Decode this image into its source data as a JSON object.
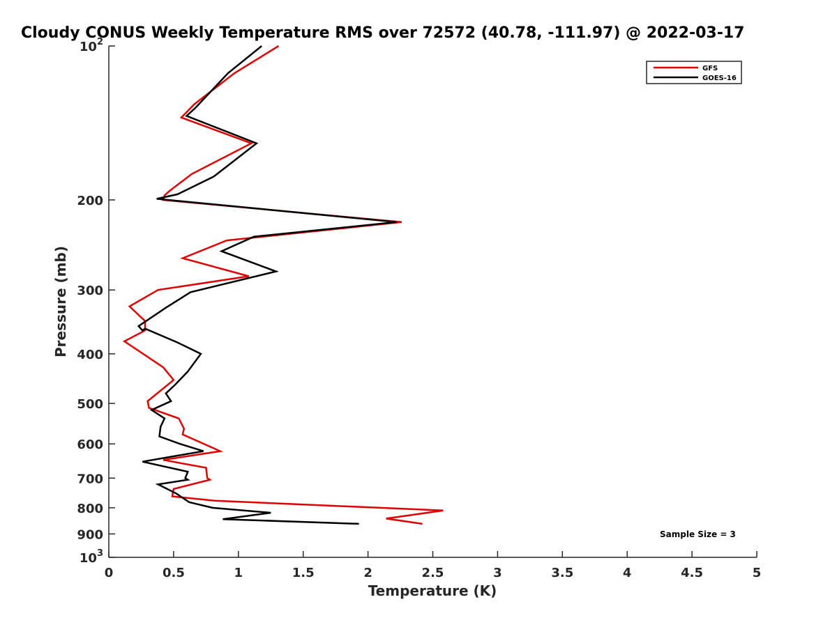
{
  "chart_data": {
    "type": "line",
    "title": "Cloudy CONUS Weekly Temperature RMS over 72572 (40.78, -111.97) @ 2022-03-17",
    "xlabel": "Temperature (K)",
    "ylabel": "Pressure (mb)",
    "xlim": [
      0,
      5
    ],
    "ylim": [
      100,
      1000
    ],
    "yscale": "log",
    "y_reversed": true,
    "x_ticks": [
      "0",
      "0.5",
      "1",
      "1.5",
      "2",
      "2.5",
      "3",
      "3.5",
      "4",
      "4.5",
      "5"
    ],
    "y_ticks": [
      {
        "value": 100,
        "base": "10",
        "exp": "2"
      },
      {
        "value": 200,
        "label": "200"
      },
      {
        "value": 300,
        "label": "300"
      },
      {
        "value": 400,
        "label": "400"
      },
      {
        "value": 500,
        "label": "500"
      },
      {
        "value": 600,
        "label": "600"
      },
      {
        "value": 700,
        "label": "700"
      },
      {
        "value": 800,
        "label": "800"
      },
      {
        "value": 900,
        "label": "900"
      },
      {
        "value": 1000,
        "base": "10",
        "exp": "3"
      }
    ],
    "grid": false,
    "legend_position": "top-right",
    "annotation": "Sample Size = 3",
    "series": [
      {
        "name": "GFS",
        "color": "#e00000",
        "x": [
          1.31,
          0.97,
          0.66,
          0.56,
          1.1,
          0.64,
          0.47,
          0.43,
          0.42,
          2.26,
          0.91,
          0.57,
          1.08,
          0.38,
          0.16,
          0.28,
          0.28,
          0.12,
          0.42,
          0.5,
          0.3,
          0.31,
          0.54,
          0.58,
          0.57,
          0.86,
          0.42,
          0.75,
          0.76,
          0.78,
          0.5,
          0.49,
          0.82,
          2.58,
          2.14,
          2.42
        ],
        "y": [
          100,
          113,
          130,
          138,
          155,
          178,
          192,
          196,
          200,
          221,
          240,
          260,
          282,
          300,
          323,
          345,
          360,
          378,
          425,
          450,
          495,
          510,
          535,
          560,
          575,
          620,
          645,
          668,
          700,
          705,
          735,
          760,
          775,
          810,
          840,
          860
        ]
      },
      {
        "name": "GOES-16",
        "color": "#000000",
        "x": [
          1.18,
          0.92,
          0.67,
          0.6,
          1.14,
          0.81,
          0.53,
          0.37,
          2.22,
          1.12,
          0.87,
          1.29,
          0.63,
          0.44,
          0.23,
          0.26,
          0.28,
          0.53,
          0.71,
          0.61,
          0.51,
          0.44,
          0.48,
          0.33,
          0.43,
          0.4,
          0.39,
          0.55,
          0.73,
          0.26,
          0.61,
          0.59,
          0.61,
          0.38,
          0.52,
          0.57,
          0.62,
          0.8,
          1.25,
          0.88,
          1.93
        ],
        "y": [
          100,
          113,
          132,
          137,
          155,
          180,
          195,
          199,
          221,
          236,
          252,
          276,
          303,
          325,
          353,
          360,
          357,
          380,
          400,
          433,
          460,
          478,
          495,
          515,
          535,
          555,
          580,
          600,
          620,
          650,
          680,
          700,
          705,
          720,
          750,
          765,
          780,
          800,
          818,
          842,
          860
        ]
      }
    ]
  }
}
